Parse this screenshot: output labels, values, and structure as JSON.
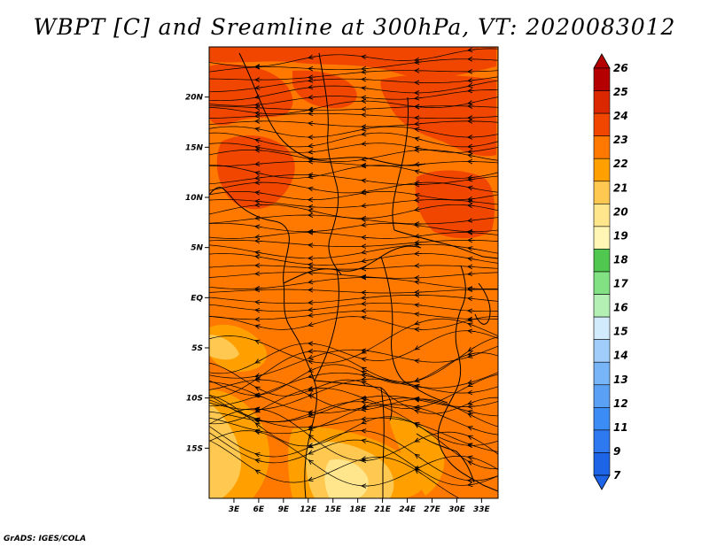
{
  "title": "WBPT [C] and Sreamline at 300hPa, VT: 2020083012",
  "credit": "GrADS: IGES/COLA",
  "map": {
    "lon_range": [
      0,
      35
    ],
    "lat_range": [
      -20,
      25
    ],
    "lon_ticks": [
      {
        "value": 3,
        "label": "3E"
      },
      {
        "value": 6,
        "label": "6E"
      },
      {
        "value": 9,
        "label": "9E"
      },
      {
        "value": 12,
        "label": "12E"
      },
      {
        "value": 15,
        "label": "15E"
      },
      {
        "value": 18,
        "label": "18E"
      },
      {
        "value": 21,
        "label": "21E"
      },
      {
        "value": 24,
        "label": "24E"
      },
      {
        "value": 27,
        "label": "27E"
      },
      {
        "value": 30,
        "label": "30E"
      },
      {
        "value": 33,
        "label": "33E"
      }
    ],
    "lat_ticks": [
      {
        "value": 20,
        "label": "20N"
      },
      {
        "value": 15,
        "label": "15N"
      },
      {
        "value": 10,
        "label": "10N"
      },
      {
        "value": 5,
        "label": "5N"
      },
      {
        "value": 0,
        "label": "EQ"
      },
      {
        "value": -5,
        "label": "5S"
      },
      {
        "value": -10,
        "label": "10S"
      },
      {
        "value": -15,
        "label": "15S"
      }
    ]
  },
  "colorbar": {
    "labels": [
      "7",
      "9",
      "11",
      "12",
      "13",
      "14",
      "15",
      "16",
      "17",
      "18",
      "19",
      "20",
      "21",
      "22",
      "23",
      "24",
      "25",
      "26"
    ],
    "colors": [
      "#1e64e6",
      "#2e78f0",
      "#3c8cf5",
      "#5aa0f5",
      "#78b4f8",
      "#a0cdfa",
      "#d2ebfc",
      "#b4f0b4",
      "#82e182",
      "#50c850",
      "#fff5b4",
      "#ffe68c",
      "#ffc850",
      "#ffa000",
      "#ff7800",
      "#f04600",
      "#dc2800",
      "#b40000"
    ]
  }
}
